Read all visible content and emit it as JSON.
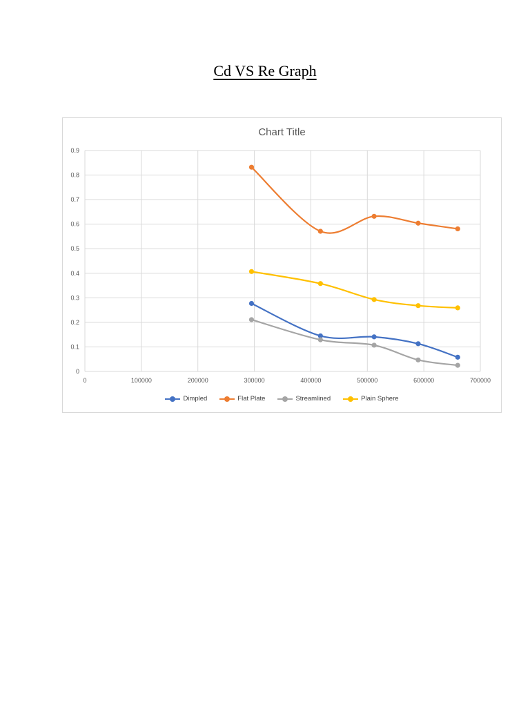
{
  "page": {
    "heading": "Cd VS Re Graph"
  },
  "chart_data": {
    "type": "line",
    "title": "Chart Title",
    "xlim": [
      0,
      700000
    ],
    "ylim": [
      0,
      0.9
    ],
    "x_ticks": [
      "0",
      "100000",
      "200000",
      "300000",
      "400000",
      "500000",
      "600000",
      "700000"
    ],
    "y_ticks": [
      "0",
      "0.1",
      "0.2",
      "0.3",
      "0.4",
      "0.5",
      "0.6",
      "0.7",
      "0.8",
      "0.9"
    ],
    "grid": true,
    "legend_position": "bottom",
    "smooth": true,
    "series": [
      {
        "name": "Dimpled",
        "color": "#4472C4",
        "x": [
          295000,
          417000,
          512000,
          590000,
          660000
        ],
        "y": [
          0.277,
          0.145,
          0.141,
          0.113,
          0.058
        ]
      },
      {
        "name": "Flat Plate",
        "color": "#ED7D31",
        "x": [
          295000,
          417000,
          512000,
          590000,
          660000
        ],
        "y": [
          0.832,
          0.571,
          0.632,
          0.604,
          0.581
        ]
      },
      {
        "name": "Streamlined",
        "color": "#A5A5A5",
        "x": [
          295000,
          417000,
          512000,
          590000,
          660000
        ],
        "y": [
          0.211,
          0.129,
          0.107,
          0.047,
          0.025
        ]
      },
      {
        "name": "Plain Sphere",
        "color": "#FFC000",
        "x": [
          295000,
          417000,
          512000,
          590000,
          660000
        ],
        "y": [
          0.407,
          0.358,
          0.293,
          0.268,
          0.259
        ]
      }
    ]
  }
}
